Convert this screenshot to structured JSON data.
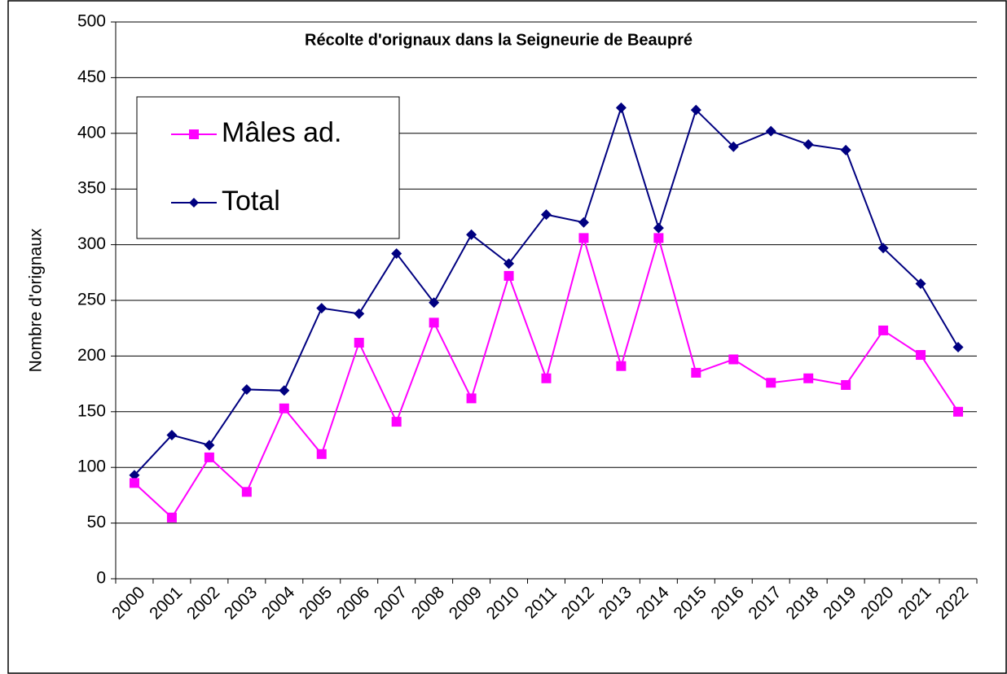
{
  "chart_data": {
    "type": "line",
    "title": "Récolte d'orignaux dans la Seigneurie de Beaupré",
    "y_label": "Nombre d'orignaux",
    "categories": [
      "2000",
      "2001",
      "2002",
      "2003",
      "2004",
      "2005",
      "2006",
      "2007",
      "2008",
      "2009",
      "2010",
      "2011",
      "2012",
      "2013",
      "2014",
      "2015",
      "2016",
      "2017",
      "2018",
      "2019",
      "2020",
      "2021",
      "2022"
    ],
    "series": [
      {
        "name": "Mâles ad.",
        "color": "#ff00ff",
        "marker": "square",
        "values": [
          86,
          55,
          109,
          78,
          153,
          112,
          212,
          141,
          230,
          162,
          272,
          180,
          306,
          191,
          306,
          185,
          197,
          176,
          180,
          174,
          223,
          201,
          150
        ]
      },
      {
        "name": "Total",
        "color": "#000080",
        "marker": "diamond",
        "values": [
          93,
          129,
          120,
          170,
          169,
          243,
          238,
          292,
          248,
          309,
          283,
          327,
          320,
          423,
          315,
          421,
          388,
          402,
          390,
          385,
          297,
          265,
          208
        ]
      }
    ],
    "ylim": [
      0,
      500
    ],
    "yticks": [
      0,
      50,
      100,
      150,
      200,
      250,
      300,
      350,
      400,
      450,
      500
    ],
    "grid": true
  }
}
